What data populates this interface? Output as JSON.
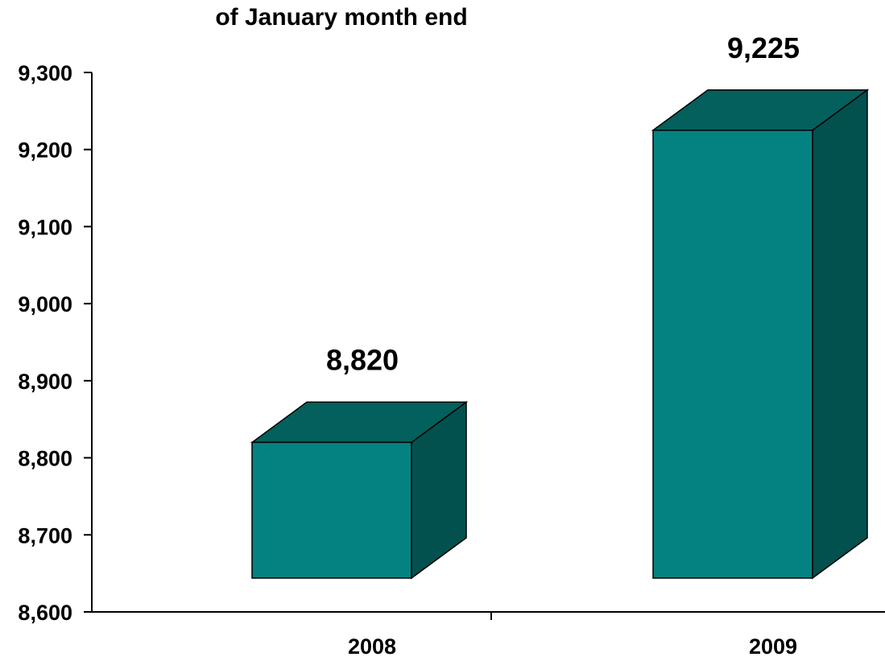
{
  "chart_data": {
    "type": "bar",
    "title": "of January month end",
    "categories": [
      "2008",
      "2009"
    ],
    "values": [
      8820,
      9225
    ],
    "value_labels": [
      "8,820",
      "9,225"
    ],
    "ylim": [
      8600,
      9300
    ],
    "yticks": [
      8600,
      8700,
      8800,
      8900,
      9000,
      9100,
      9200,
      9300
    ],
    "ytick_labels": [
      "8,600",
      "8,700",
      "8,800",
      "8,900",
      "9,000",
      "9,100",
      "9,200",
      "9,300"
    ],
    "xlabel": "",
    "ylabel": "",
    "grid": false,
    "legend": "none",
    "style": "3d-column"
  },
  "colors": {
    "bar_front": "#048282",
    "bar_top": "#03605C",
    "bar_side": "#02514F",
    "outline": "#000000",
    "axis": "#000000"
  }
}
